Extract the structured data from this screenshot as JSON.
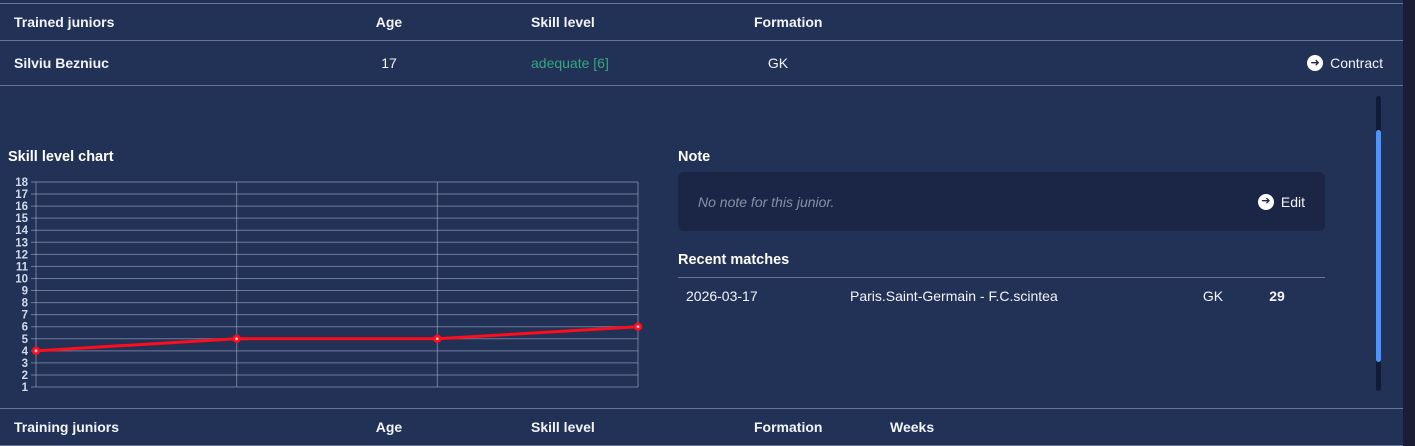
{
  "theme": {
    "bg": "#223156",
    "bg-deep": "#1b2749",
    "panel_right": "#1a1d33",
    "note_card_bg": "#1b2647",
    "divider": "rgba(200,210,232,0.42)",
    "text": "#f2f4fa",
    "muted": "#878fa6",
    "green": "#35a77e",
    "red": "#fe0d1b",
    "scroll_thumb": "#4c94fe",
    "scroll_track": "#131a36",
    "grid_line": "rgba(172,184,212,0.55)",
    "tick_label": "#d2d9ea"
  },
  "icons": {
    "circle_arrow": "➜"
  },
  "trained_juniors": {
    "header": {
      "name": "Trained juniors",
      "age": "Age",
      "skill": "Skill level",
      "formation": "Formation"
    },
    "row": {
      "name": "Silviu Bezniuc",
      "age": "17",
      "skill": "adequate [6]",
      "formation": "GK",
      "action": "Contract"
    }
  },
  "chart_section": {
    "title": "Skill level chart"
  },
  "chart_data": {
    "type": "line",
    "title": "Skill level chart",
    "x": [
      1,
      2,
      3,
      4
    ],
    "values": [
      4,
      5,
      5,
      6
    ],
    "ylim": [
      1,
      18
    ],
    "ytick_step": 1,
    "xlabel": "",
    "ylabel": "",
    "x_tick_labels": [],
    "grid": true,
    "legend": "none",
    "line_color": "#fe0d1b",
    "marker": "circle"
  },
  "note_section": {
    "title": "Note",
    "empty_text": "No note for this junior.",
    "edit_label": "Edit"
  },
  "recent_matches": {
    "title": "Recent matches",
    "rows": [
      {
        "date": "2026-03-17",
        "match": "Paris.Saint-Germain - F.C.scintea",
        "position": "GK",
        "rating": "29"
      }
    ]
  },
  "training_juniors": {
    "header": {
      "name": "Training juniors",
      "age": "Age",
      "skill": "Skill level",
      "formation": "Formation",
      "weeks": "Weeks"
    }
  }
}
